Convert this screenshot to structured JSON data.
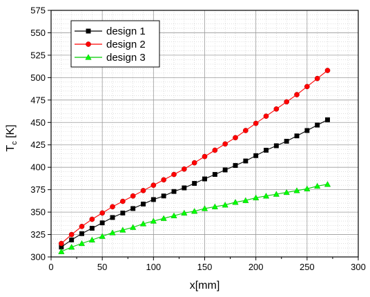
{
  "chart_data": {
    "type": "line",
    "xlabel": "x[mm]",
    "ylabel_main": "T",
    "ylabel_sub": "c",
    "ylabel_unit": " [K]",
    "xlim": [
      0,
      300
    ],
    "ylim": [
      300,
      575
    ],
    "xticks": [
      0,
      50,
      100,
      150,
      200,
      250,
      300
    ],
    "yticks": [
      300,
      325,
      350,
      375,
      400,
      425,
      450,
      475,
      500,
      525,
      550,
      575
    ],
    "grid": true,
    "legend_position": "top-left",
    "x": [
      10,
      20,
      30,
      40,
      50,
      60,
      70,
      80,
      90,
      100,
      110,
      120,
      130,
      140,
      150,
      160,
      170,
      180,
      190,
      200,
      210,
      220,
      230,
      240,
      250,
      260,
      270
    ],
    "series": [
      {
        "name": "design 1",
        "color": "#000000",
        "marker": "square",
        "values": [
          311,
          319,
          326,
          332,
          338,
          344,
          349,
          354,
          359,
          364,
          368,
          373,
          377,
          382,
          387,
          392,
          397,
          402,
          407,
          413,
          419,
          424,
          429,
          435,
          441,
          447,
          453
        ]
      },
      {
        "name": "design 2",
        "color": "#ff0000",
        "marker": "circle",
        "values": [
          315,
          325,
          334,
          342,
          349,
          356,
          362,
          368,
          374,
          380,
          386,
          392,
          398,
          405,
          412,
          419,
          426,
          433,
          441,
          449,
          457,
          465,
          473,
          481,
          490,
          499,
          508
        ]
      },
      {
        "name": "design 3",
        "color": "#00ff00",
        "marker": "triangle",
        "values": [
          306,
          311,
          315,
          319,
          323,
          327,
          330,
          333,
          337,
          340,
          343,
          346,
          349,
          351,
          354,
          356,
          358,
          361,
          363,
          366,
          368,
          370,
          372,
          374,
          376,
          379,
          381
        ]
      }
    ]
  }
}
